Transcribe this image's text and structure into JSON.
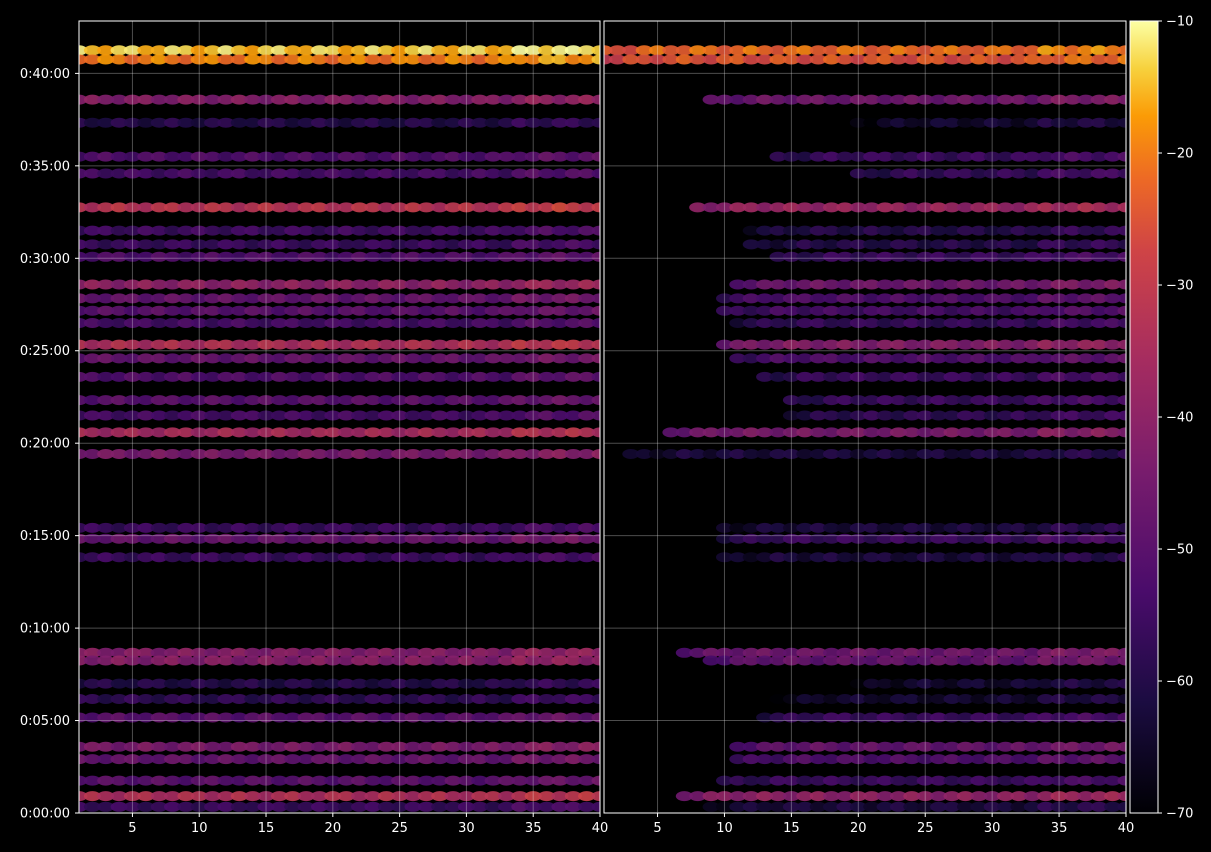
{
  "chart_data": {
    "type": "heatmap",
    "colormap": "inferno",
    "background": "#000000",
    "grid": true,
    "panels": [
      {
        "name": "",
        "xlim": [
          1,
          40
        ],
        "x_ticks": [
          5,
          10,
          15,
          20,
          25,
          30,
          35,
          40
        ],
        "x_tick_labels": [
          "5",
          "10",
          "15",
          "20",
          "25",
          "30",
          "35",
          "40"
        ]
      },
      {
        "name": "",
        "xlim": [
          1,
          40
        ],
        "x_ticks": [
          5,
          10,
          15,
          20,
          25,
          30,
          35,
          40
        ],
        "x_tick_labels": [
          "5",
          "10",
          "15",
          "20",
          "25",
          "30",
          "35",
          "40"
        ]
      }
    ],
    "ylim_seconds": [
      0,
      2570
    ],
    "y_ticks_seconds": [
      0,
      300,
      600,
      900,
      1200,
      1500,
      1800,
      2100,
      2400
    ],
    "y_tick_labels": [
      "0:00:00",
      "0:05:00",
      "0:10:00",
      "0:15:00",
      "0:20:00",
      "0:25:00",
      "0:30:00",
      "0:35:00",
      "0:40:00"
    ],
    "colorbar": {
      "vmin": -70,
      "vmax": -10,
      "ticks": [
        -10,
        -20,
        -30,
        -40,
        -50,
        -60,
        -70
      ],
      "tick_labels": [
        "−10",
        "−20",
        "−30",
        "−40",
        "−50",
        "−60",
        "−70"
      ]
    },
    "bands": [
      {
        "t": 2475,
        "left": -14,
        "right": -22,
        "right_start": 1
      },
      {
        "t": 2445,
        "left": -20,
        "right": -25,
        "right_start": 1
      },
      {
        "t": 2315,
        "left": -42,
        "right": -46,
        "right_start": 9
      },
      {
        "t": 2240,
        "left": -60,
        "right": -64,
        "right_start": 20
      },
      {
        "t": 2130,
        "left": -52,
        "right": -56,
        "right_start": 14
      },
      {
        "t": 2075,
        "left": -54,
        "right": -57,
        "right_start": 20
      },
      {
        "t": 1965,
        "left": -32,
        "right": -38,
        "right_start": 8
      },
      {
        "t": 1890,
        "left": -55,
        "right": -60,
        "right_start": 12
      },
      {
        "t": 1845,
        "left": -56,
        "right": -60,
        "right_start": 12
      },
      {
        "t": 1805,
        "left": -52,
        "right": -56,
        "right_start": 14
      },
      {
        "t": 1715,
        "left": -40,
        "right": -46,
        "right_start": 11
      },
      {
        "t": 1670,
        "left": -48,
        "right": -52,
        "right_start": 10
      },
      {
        "t": 1630,
        "left": -50,
        "right": -54,
        "right_start": 10
      },
      {
        "t": 1590,
        "left": -54,
        "right": -57,
        "right_start": 11
      },
      {
        "t": 1520,
        "left": -34,
        "right": -42,
        "right_start": 10
      },
      {
        "t": 1475,
        "left": -48,
        "right": -52,
        "right_start": 11
      },
      {
        "t": 1415,
        "left": -52,
        "right": -56,
        "right_start": 13
      },
      {
        "t": 1340,
        "left": -50,
        "right": -56,
        "right_start": 15
      },
      {
        "t": 1290,
        "left": -54,
        "right": -58,
        "right_start": 15
      },
      {
        "t": 1235,
        "left": -36,
        "right": -44,
        "right_start": 6
      },
      {
        "t": 1165,
        "left": -44,
        "right": -62,
        "right_start": 3
      },
      {
        "t": 925,
        "left": -56,
        "right": -62,
        "right_start": 10
      },
      {
        "t": 890,
        "left": -48,
        "right": -56,
        "right_start": 10
      },
      {
        "t": 830,
        "left": -56,
        "right": -62,
        "right_start": 10
      },
      {
        "t": 520,
        "left": -42,
        "right": -46,
        "right_start": 7
      },
      {
        "t": 495,
        "left": -42,
        "right": -48,
        "right_start": 9
      },
      {
        "t": 420,
        "left": -60,
        "right": -64,
        "right_start": 20
      },
      {
        "t": 370,
        "left": -58,
        "right": -64,
        "right_start": 14
      },
      {
        "t": 310,
        "left": -50,
        "right": -56,
        "right_start": 13
      },
      {
        "t": 215,
        "left": -44,
        "right": -48,
        "right_start": 11
      },
      {
        "t": 175,
        "left": -48,
        "right": -52,
        "right_start": 11
      },
      {
        "t": 105,
        "left": -50,
        "right": -56,
        "right_start": 10
      },
      {
        "t": 55,
        "left": -34,
        "right": -40,
        "right_start": 7
      },
      {
        "t": 20,
        "left": -56,
        "right": -62,
        "right_start": 9
      }
    ]
  }
}
